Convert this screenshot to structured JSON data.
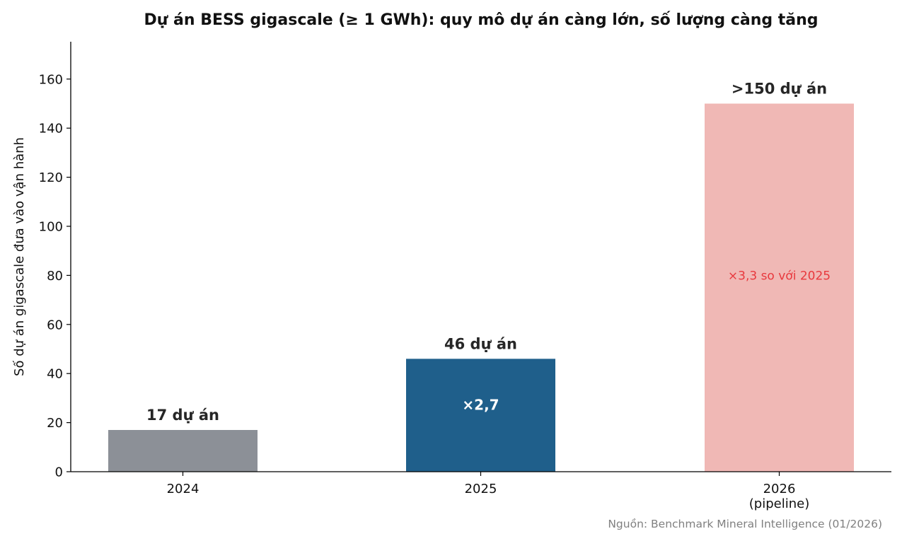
{
  "chart_data": {
    "type": "bar",
    "title": "Dự án BESS gigascale (≥ 1 GWh): quy mô dự án càng lớn, số lượng càng tăng",
    "xlabel": "",
    "ylabel": "Số dự án gigascale đưa vào vận hành",
    "categories": [
      [
        "2024"
      ],
      [
        "2025"
      ],
      [
        "2026",
        "(pipeline)"
      ]
    ],
    "values": [
      17,
      46,
      150
    ],
    "bar_colors": [
      "#8c9097",
      "#1f5f8b",
      "#f0b8b5"
    ],
    "bar_labels": [
      "17 dự án",
      "46 dự án",
      ">150 dự án"
    ],
    "inner_labels": [
      {
        "index": 1,
        "text": "×2,7",
        "color": "#ffffff",
        "bold": true,
        "y_value": 27
      },
      {
        "index": 2,
        "text": "×3,3 so với 2025",
        "color": "#e8383d",
        "bold": false,
        "y_value": 80
      }
    ],
    "ylim": [
      0,
      175
    ],
    "yticks": [
      0,
      20,
      40,
      60,
      80,
      100,
      120,
      140,
      160
    ],
    "grid": false,
    "legend": "none"
  },
  "source": "Nguồn: Benchmark Mineral Intelligence (01/2026)"
}
